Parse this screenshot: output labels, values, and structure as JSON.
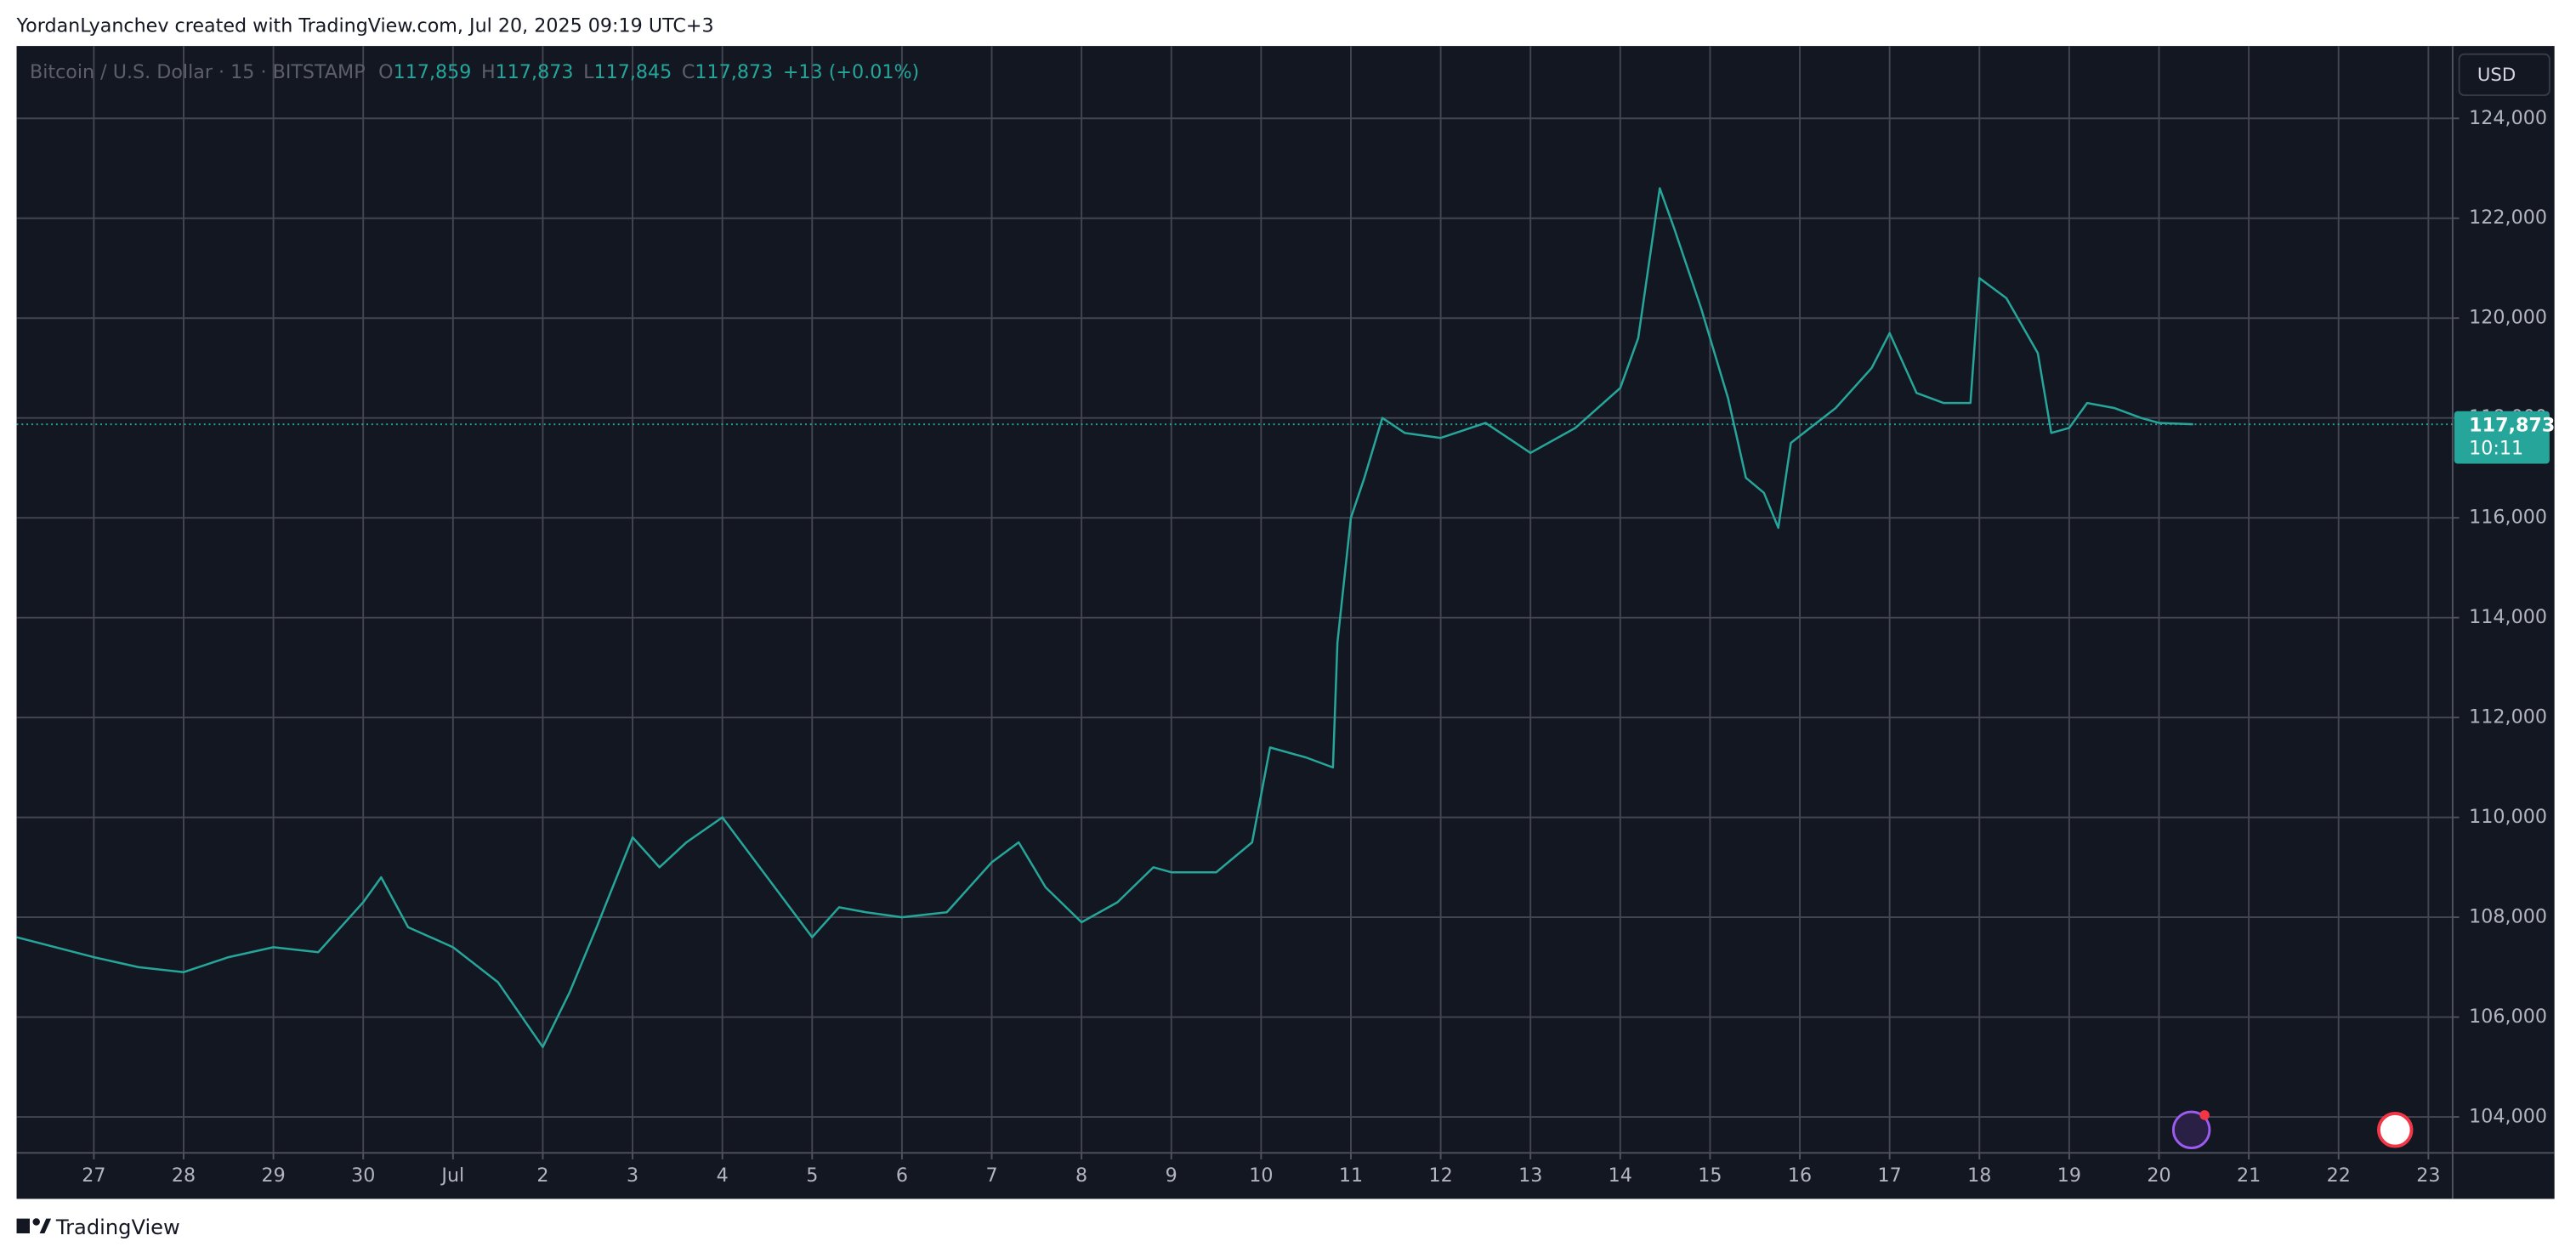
{
  "header": "YordanLyanchev created with TradingView.com, Jul 20, 2025 09:19 UTC+3",
  "footer": "TradingView",
  "currency_button": "USD",
  "ohlc": [
    {
      "key": "O",
      "value": "117,859"
    },
    {
      "key": "H",
      "value": "117,873"
    },
    {
      "key": "L",
      "value": "117,845"
    },
    {
      "key": "C",
      "value": "117,873"
    }
  ],
  "change": "+13 (+0.01%)",
  "last_price": {
    "value": 117873,
    "label": "117,873"
  },
  "countdown": "10:11",
  "chart_data": {
    "type": "line",
    "title": "Bitcoin / U.S. Dollar · 15 · BITSTAMP",
    "color": "#26a69a",
    "grid": true,
    "x": [
      -0.86,
      0,
      0.5,
      1,
      1.5,
      2,
      2.5,
      3,
      3.2,
      3.5,
      4,
      4.5,
      5,
      5.3,
      5.6,
      6,
      6.3,
      6.6,
      7,
      7.5,
      8,
      8.3,
      8.6,
      9,
      9.5,
      10,
      10.3,
      10.6,
      11,
      11.4,
      11.8,
      12,
      12.5,
      12.9,
      13.1,
      13.5,
      13.8,
      13.85,
      14,
      14.15,
      14.35,
      14.6,
      15,
      15.5,
      16,
      16.5,
      17,
      17.2,
      17.44,
      17.6,
      17.9,
      18.2,
      18.4,
      18.6,
      18.76,
      18.9,
      19.4,
      19.8,
      20,
      20.3,
      20.6,
      20.9,
      21,
      21.3,
      21.65,
      21.8,
      22,
      22.2,
      22.5,
      22.8,
      23,
      23.38
    ],
    "values": [
      107600,
      107200,
      107000,
      106900,
      107200,
      107400,
      107300,
      108300,
      108800,
      107800,
      107400,
      106700,
      105400,
      106500,
      107800,
      109600,
      109000,
      109500,
      110000,
      108800,
      107600,
      108200,
      108100,
      108000,
      108100,
      109100,
      109500,
      108600,
      107900,
      108300,
      109000,
      108900,
      108900,
      109500,
      111400,
      111200,
      111000,
      113500,
      116000,
      116800,
      118000,
      117700,
      117600,
      117900,
      117300,
      117800,
      118600,
      119600,
      122600,
      121800,
      120200,
      118400,
      116800,
      116500,
      115800,
      117500,
      118200,
      119000,
      119700,
      118500,
      118300,
      118300,
      120800,
      120400,
      119300,
      117700,
      117800,
      118300,
      118200,
      118000,
      117900,
      117873
    ],
    "xlim": [
      -0.86,
      26.27
    ],
    "ylim": [
      103280,
      125450
    ],
    "yticks": [
      {
        "value": 104000,
        "label": "104,000"
      },
      {
        "value": 106000,
        "label": "106,000"
      },
      {
        "value": 108000,
        "label": "108,000"
      },
      {
        "value": 110000,
        "label": "110,000"
      },
      {
        "value": 112000,
        "label": "112,000"
      },
      {
        "value": 114000,
        "label": "114,000"
      },
      {
        "value": 116000,
        "label": "116,000"
      },
      {
        "value": 118000,
        "label": "118,000"
      },
      {
        "value": 120000,
        "label": "120,000"
      },
      {
        "value": 122000,
        "label": "122,000"
      },
      {
        "value": 124000,
        "label": "124,000"
      }
    ],
    "xticks": [
      {
        "value": 0,
        "label": "27"
      },
      {
        "value": 1,
        "label": "28"
      },
      {
        "value": 2,
        "label": "29"
      },
      {
        "value": 3,
        "label": "30"
      },
      {
        "value": 4,
        "label": "Jul"
      },
      {
        "value": 5,
        "label": "2"
      },
      {
        "value": 6,
        "label": "3"
      },
      {
        "value": 7,
        "label": "4"
      },
      {
        "value": 8,
        "label": "5"
      },
      {
        "value": 9,
        "label": "6"
      },
      {
        "value": 10,
        "label": "7"
      },
      {
        "value": 11,
        "label": "8"
      },
      {
        "value": 12,
        "label": "9"
      },
      {
        "value": 13,
        "label": "10"
      },
      {
        "value": 14,
        "label": "11"
      },
      {
        "value": 15,
        "label": "12"
      },
      {
        "value": 16,
        "label": "13"
      },
      {
        "value": 17,
        "label": "14"
      },
      {
        "value": 18,
        "label": "15"
      },
      {
        "value": 19,
        "label": "16"
      },
      {
        "value": 20,
        "label": "17"
      },
      {
        "value": 21,
        "label": "18"
      },
      {
        "value": 22,
        "label": "19"
      },
      {
        "value": 23,
        "label": "20"
      },
      {
        "value": 24,
        "label": "21"
      },
      {
        "value": 25,
        "label": "22"
      },
      {
        "value": 26,
        "label": "23"
      }
    ]
  }
}
